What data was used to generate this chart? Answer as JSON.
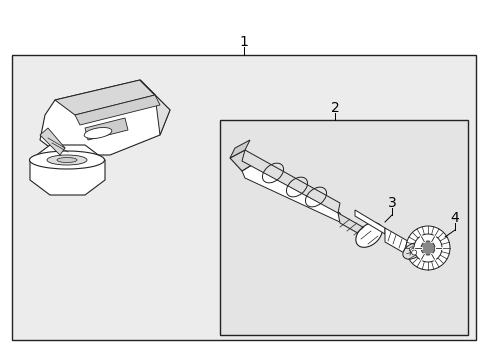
{
  "bg_color": "#ffffff",
  "box_bg": "#e8e8e8",
  "outer_box_color": "#333333",
  "inner_box_color": "#333333",
  "label_1": "1",
  "label_2": "2",
  "label_3": "3",
  "label_4": "4",
  "font_size_labels": 10,
  "line_color": "#222222"
}
